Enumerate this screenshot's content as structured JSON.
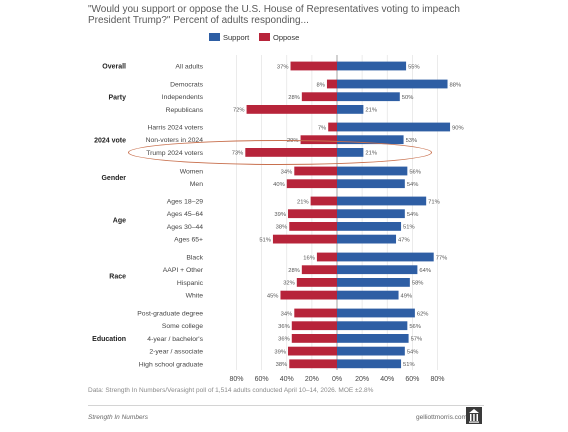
{
  "title": "\"Would you support or oppose the U.S. House of Representatives voting to impeach President Trump?\" Percent of adults responding...",
  "note": "Data: Strength In Numbers/Verasight poll of 1,514 adults conducted April 10–14, 2026. MOE ±2.8%",
  "footer": {
    "left": "Strength In Numbers",
    "right": "gelliottmorris.com"
  },
  "colors": {
    "support": "#2e5ea4",
    "oppose": "#b7243a",
    "highlight": "#c8704e"
  },
  "chart_data": {
    "type": "bar",
    "orientation": "horizontal-diverging",
    "series": [
      {
        "name": "Support",
        "color": "#2e5ea4"
      },
      {
        "name": "Oppose",
        "color": "#b7243a"
      }
    ],
    "xlim": [
      -80,
      80
    ],
    "x_ticks": [
      "80%",
      "60%",
      "40%",
      "20%",
      "0%",
      "20%",
      "40%",
      "60%",
      "80%"
    ],
    "grid": true,
    "legend_position": "top-right",
    "groups": [
      {
        "name": "Overall",
        "rows": [
          {
            "label": "All adults",
            "support": 55,
            "oppose": 37
          }
        ]
      },
      {
        "name": "Party",
        "rows": [
          {
            "label": "Democrats",
            "support": 88,
            "oppose": 8
          },
          {
            "label": "Independents",
            "support": 50,
            "oppose": 28
          },
          {
            "label": "Republicans",
            "support": 21,
            "oppose": 72
          }
        ]
      },
      {
        "name": "2024 vote",
        "rows": [
          {
            "label": "Harris 2024 voters",
            "support": 90,
            "oppose": 7
          },
          {
            "label": "Non-voters in 2024",
            "support": 53,
            "oppose": 29
          },
          {
            "label": "Trump 2024 voters",
            "support": 21,
            "oppose": 73,
            "highlighted": true
          }
        ]
      },
      {
        "name": "Gender",
        "rows": [
          {
            "label": "Women",
            "support": 56,
            "oppose": 34
          },
          {
            "label": "Men",
            "support": 54,
            "oppose": 40
          }
        ]
      },
      {
        "name": "Age",
        "rows": [
          {
            "label": "Ages 18–29",
            "support": 71,
            "oppose": 21
          },
          {
            "label": "Ages 45–64",
            "support": 54,
            "oppose": 39
          },
          {
            "label": "Ages 30–44",
            "support": 51,
            "oppose": 38
          },
          {
            "label": "Ages 65+",
            "support": 47,
            "oppose": 51
          }
        ]
      },
      {
        "name": "Race",
        "rows": [
          {
            "label": "Black",
            "support": 77,
            "oppose": 16
          },
          {
            "label": "AAPI + Other",
            "support": 64,
            "oppose": 28
          },
          {
            "label": "Hispanic",
            "support": 58,
            "oppose": 32
          },
          {
            "label": "White",
            "support": 49,
            "oppose": 45
          }
        ]
      },
      {
        "name": "Education",
        "rows": [
          {
            "label": "Post-graduate degree",
            "support": 62,
            "oppose": 34
          },
          {
            "label": "Some college",
            "support": 56,
            "oppose": 36
          },
          {
            "label": "4-year / bachelor's",
            "support": 57,
            "oppose": 36
          },
          {
            "label": "2-year / associate",
            "support": 54,
            "oppose": 39
          },
          {
            "label": "High school graduate",
            "support": 51,
            "oppose": 38
          }
        ]
      }
    ]
  }
}
